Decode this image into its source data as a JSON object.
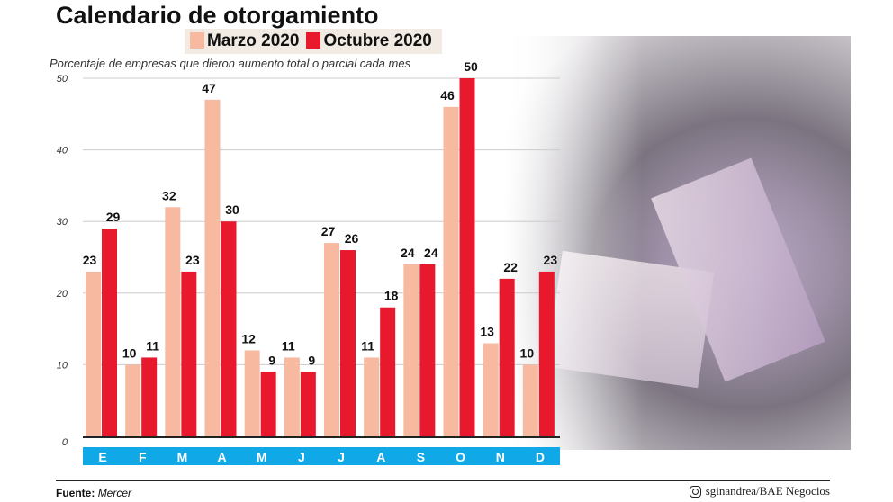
{
  "chart_data": {
    "type": "bar",
    "title": "Calendario de otorgamiento",
    "subtitle": "Porcentaje de empresas que dieron aumento total o parcial cada mes",
    "categories": [
      "E",
      "F",
      "M",
      "A",
      "M",
      "J",
      "J",
      "A",
      "S",
      "O",
      "N",
      "D"
    ],
    "series": [
      {
        "name": "Marzo 2020",
        "color": "#f7b9a0",
        "values": [
          23,
          10,
          32,
          47,
          12,
          11,
          27,
          11,
          24,
          46,
          13,
          10
        ]
      },
      {
        "name": "Octubre 2020",
        "color": "#e8192c",
        "values": [
          29,
          11,
          23,
          30,
          9,
          9,
          26,
          18,
          24,
          50,
          22,
          23
        ]
      }
    ],
    "ylim": [
      0,
      50
    ],
    "yticks": [
      0,
      10,
      20,
      30,
      40,
      50
    ],
    "grid": true,
    "legend": "top",
    "month_band_color": "#11a8e8"
  },
  "footer": {
    "source_label": "Fuente:",
    "source": "Mercer",
    "credit": "sginandrea/BAE Negocios",
    "credit_icon": "instagram-icon"
  }
}
